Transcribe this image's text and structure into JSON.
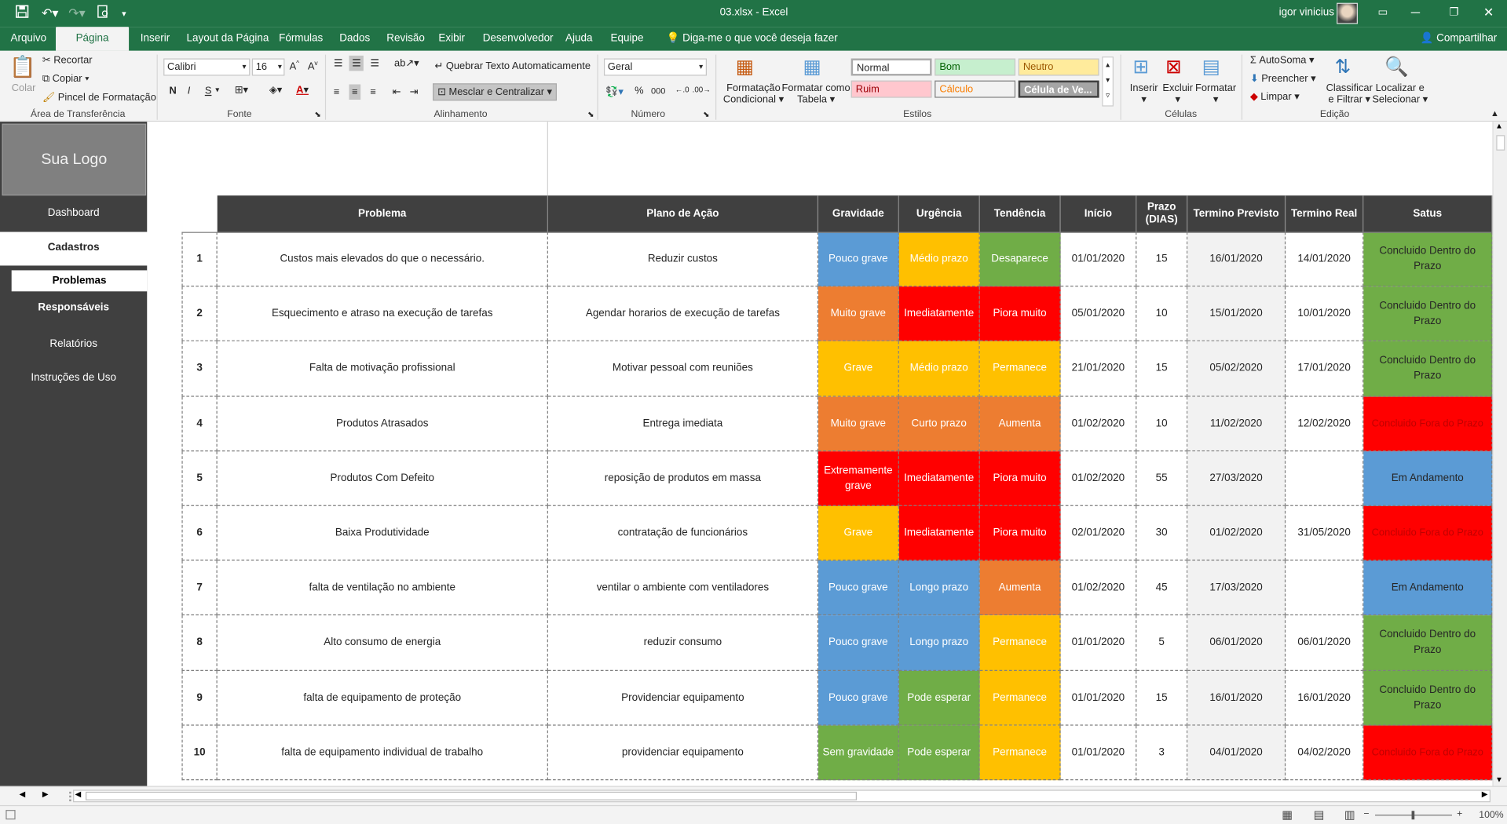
{
  "window": {
    "title": "03.xlsx  -  Excel",
    "user": "igor vinicius"
  },
  "tabs": [
    "Arquivo",
    "Página Inicial",
    "Inserir",
    "Layout da Página",
    "Fórmulas",
    "Dados",
    "Revisão",
    "Exibir",
    "Desenvolvedor",
    "Ajuda",
    "Equipe"
  ],
  "tell_me": "Diga-me o que você deseja fazer",
  "share": "Compartilhar",
  "ribbon": {
    "clipboard": {
      "paste": "Colar",
      "cut": "Recortar",
      "copy": "Copiar",
      "format_painter": "Pincel de Formatação",
      "label": "Área de Transferência"
    },
    "font": {
      "name": "Calibri",
      "size": "16",
      "label": "Fonte",
      "bold": "N",
      "italic": "I",
      "underline": "S"
    },
    "alignment": {
      "wrap": "Quebrar Texto Automaticamente",
      "merge": "Mesclar e Centralizar",
      "label": "Alinhamento"
    },
    "number": {
      "format": "Geral",
      "label": "Número",
      "percent": "%",
      "thousands": "000"
    },
    "styles": {
      "conditional": "Formatação Condicional",
      "conditional_line1": "Formatação",
      "conditional_line2": "Condicional",
      "table_line1": "Formatar como",
      "table_line2": "Tabela",
      "normal": "Normal",
      "bom": "Bom",
      "neutro": "Neutro",
      "ruim": "Ruim",
      "calculo": "Cálculo",
      "celula": "Célula de Ve...",
      "label": "Estilos"
    },
    "cells": {
      "insert": "Inserir",
      "delete": "Excluir",
      "format": "Formatar",
      "label": "Células"
    },
    "editing": {
      "autosum": "AutoSoma",
      "fill": "Preencher",
      "clear": "Limpar",
      "sort_line1": "Classificar",
      "sort_line2": "e Filtrar",
      "find_line1": "Localizar e",
      "find_line2": "Selecionar",
      "label": "Edição"
    }
  },
  "sidebar": {
    "logo": "Sua Logo",
    "items": [
      "Dashboard",
      "Cadastros",
      "Problemas",
      "Responsáveis",
      "Relatórios",
      "Instruções de Uso"
    ]
  },
  "table": {
    "headers": [
      "Problema",
      "Plano de Ação",
      "Gravidade",
      "Urgência",
      "Tendência",
      "Início",
      "Prazo (DIAS)",
      "Termino Previsto",
      "Termino Real",
      "Satus"
    ],
    "rows": [
      {
        "n": "1",
        "problema": "Custos mais elevados do que o necessário.",
        "plano": "Reduzir custos",
        "grav": "Pouco grave",
        "urg": "Médio prazo",
        "tend": "Desaparece",
        "inicio": "01/01/2020",
        "prazo": "15",
        "prev": "16/01/2020",
        "real": "14/01/2020",
        "status": "Concluido Dentro do Prazo"
      },
      {
        "n": "2",
        "problema": "Esquecimento e atraso na execução de tarefas",
        "plano": "Agendar horarios de execução de tarefas",
        "grav": "Muito grave",
        "urg": "Imediatamente",
        "tend": "Piora muito",
        "inicio": "05/01/2020",
        "prazo": "10",
        "prev": "15/01/2020",
        "real": "10/01/2020",
        "status": "Concluido Dentro do Prazo"
      },
      {
        "n": "3",
        "problema": "Falta de motivação profissional",
        "plano": "Motivar pessoal com reuniões",
        "grav": "Grave",
        "urg": "Médio prazo",
        "tend": "Permanece",
        "inicio": "21/01/2020",
        "prazo": "15",
        "prev": "05/02/2020",
        "real": "17/01/2020",
        "status": "Concluido Dentro do Prazo"
      },
      {
        "n": "4",
        "problema": "Produtos Atrasados",
        "plano": "Entrega imediata",
        "grav": "Muito grave",
        "urg": "Curto prazo",
        "tend": "Aumenta",
        "inicio": "01/02/2020",
        "prazo": "10",
        "prev": "11/02/2020",
        "real": "12/02/2020",
        "status": "Concluido Fora do Prazo"
      },
      {
        "n": "5",
        "problema": "Produtos Com Defeito",
        "plano": "reposição de produtos em massa",
        "grav": "Extremamente grave",
        "urg": "Imediatamente",
        "tend": "Piora muito",
        "inicio": "01/02/2020",
        "prazo": "55",
        "prev": "27/03/2020",
        "real": "",
        "status": "Em Andamento"
      },
      {
        "n": "6",
        "problema": "Baixa Produtividade",
        "plano": "contratação de funcionários",
        "grav": "Grave",
        "urg": "Imediatamente",
        "tend": "Piora muito",
        "inicio": "02/01/2020",
        "prazo": "30",
        "prev": "01/02/2020",
        "real": "31/05/2020",
        "status": "Concluido Fora do Prazo"
      },
      {
        "n": "7",
        "problema": "falta de ventilação no ambiente",
        "plano": "ventilar o ambiente com ventiladores",
        "grav": "Pouco grave",
        "urg": "Longo prazo",
        "tend": "Aumenta",
        "inicio": "01/02/2020",
        "prazo": "45",
        "prev": "17/03/2020",
        "real": "",
        "status": "Em Andamento"
      },
      {
        "n": "8",
        "problema": "Alto consumo de energia",
        "plano": "reduzir consumo",
        "grav": "Pouco grave",
        "urg": "Longo prazo",
        "tend": "Permanece",
        "inicio": "01/01/2020",
        "prazo": "5",
        "prev": "06/01/2020",
        "real": "06/01/2020",
        "status": "Concluido Dentro do Prazo"
      },
      {
        "n": "9",
        "problema": "falta de equipamento de proteção",
        "plano": "Providenciar equipamento",
        "grav": "Pouco grave",
        "urg": "Pode esperar",
        "tend": "Permanece",
        "inicio": "01/01/2020",
        "prazo": "15",
        "prev": "16/01/2020",
        "real": "16/01/2020",
        "status": "Concluido Dentro do Prazo"
      },
      {
        "n": "10",
        "problema": "falta de equipamento individual de trabalho",
        "plano": "providenciar equipamento",
        "grav": "Sem gravidade",
        "urg": "Pode esperar",
        "tend": "Permanece",
        "inicio": "01/01/2020",
        "prazo": "3",
        "prev": "04/01/2020",
        "real": "04/02/2020",
        "status": "Concluido Fora do Prazo"
      }
    ]
  },
  "colors": {
    "excel_green": "#217346",
    "blue": "#5b9bd5",
    "orange": "#ed7d31",
    "yellow": "#ffc000",
    "red": "#ff0000",
    "green": "#70ad47",
    "header_dark": "#404040"
  },
  "status_bar": {
    "zoom": "100%"
  }
}
